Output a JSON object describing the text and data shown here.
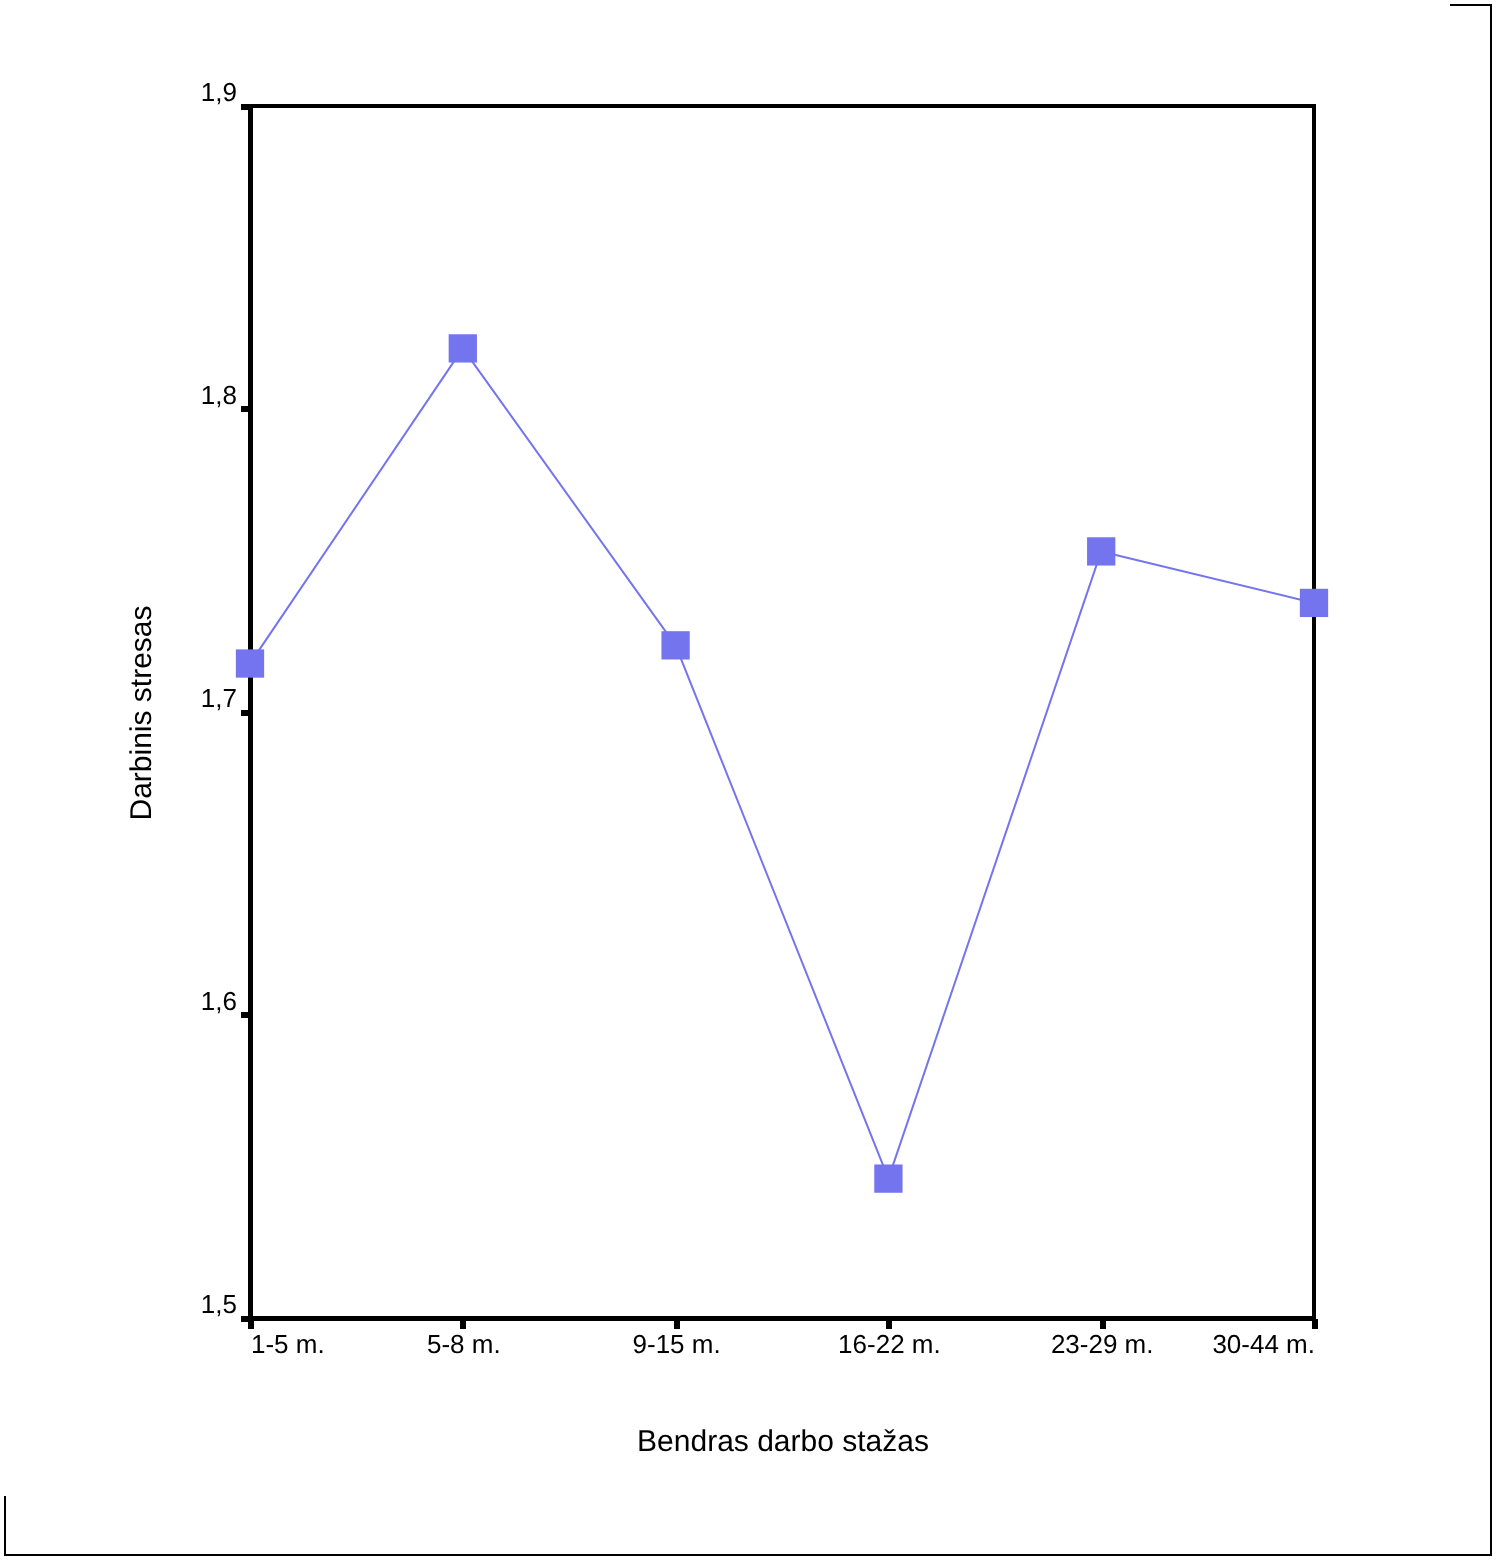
{
  "chart_data": {
    "type": "line",
    "xlabel": "Bendras darbo stažas",
    "ylabel": "Darbinis stresas",
    "categories": [
      "1-5 m.",
      "5-8 m.",
      "9-15 m.",
      "16-22 m.",
      "23-29 m.",
      "30-44 m."
    ],
    "series": [
      {
        "color": "#7474ee",
        "values": [
          1.716,
          1.82,
          1.722,
          1.546,
          1.753,
          1.736
        ]
      }
    ],
    "ylim": [
      1.5,
      1.9
    ],
    "yticks": [
      {
        "value": 1.5,
        "label": "1,5"
      },
      {
        "value": 1.6,
        "label": "1,6"
      },
      {
        "value": 1.7,
        "label": "1,7"
      },
      {
        "value": 1.8,
        "label": "1,8"
      },
      {
        "value": 1.9,
        "label": "1,9"
      }
    ],
    "grid": false,
    "marker": "square",
    "line_style": "solid",
    "legend": false
  }
}
